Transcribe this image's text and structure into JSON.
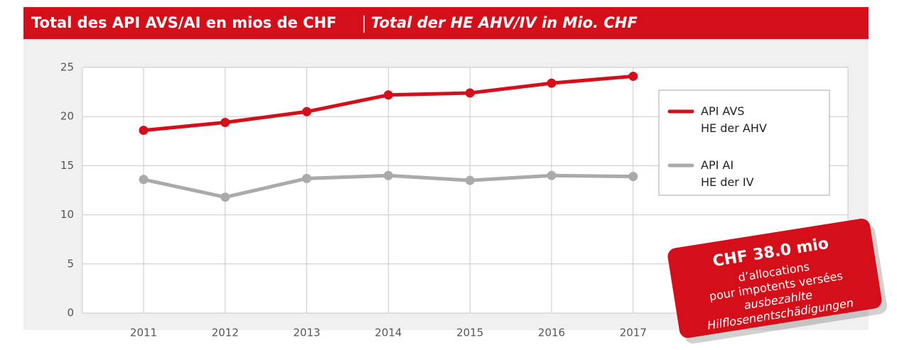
{
  "chart_data": {
    "type": "line",
    "title": "Total des API AVS/AI en mios de CHF",
    "subtitle": "Total der HE AHV/IV in Mio. CHF",
    "categories": [
      "2011",
      "2012",
      "2013",
      "2014",
      "2015",
      "2016",
      "2017"
    ],
    "series": [
      {
        "name": "API AVS\nHE der AHV",
        "color": "#d50f1a",
        "values": [
          18.6,
          19.4,
          20.5,
          22.2,
          22.4,
          23.4,
          24.1
        ]
      },
      {
        "name": "API AI\nHE der IV",
        "color": "#aaaaaa",
        "values": [
          13.6,
          11.8,
          13.7,
          14.0,
          13.5,
          14.0,
          13.9
        ]
      }
    ],
    "ylim": [
      0,
      25
    ],
    "yticks": [
      0,
      5,
      10,
      15,
      20,
      25
    ],
    "grid": true,
    "legend": "right",
    "annotation": {
      "headline": "CHF 38.0 mio",
      "lines": [
        "d’allocations",
        "pour impotents versées",
        "ausbezahlte",
        "Hilflosenentschädigungen"
      ]
    }
  }
}
